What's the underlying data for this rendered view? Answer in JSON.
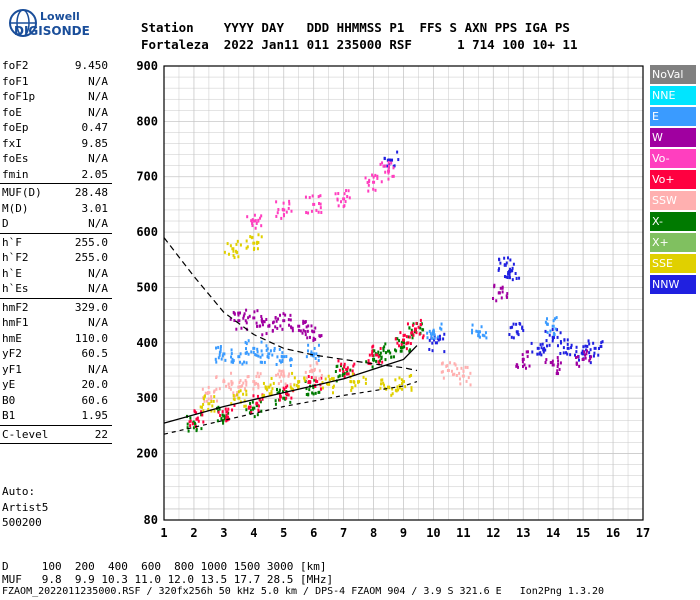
{
  "logo": {
    "line1": "Lowell",
    "line2": "DIGISONDE"
  },
  "header": {
    "row1": "Station    YYYY DAY   DDD HHMMSS P1  FFS S AXN PPS IGA PS",
    "row2": "Fortaleza  2022 Jan11 011 235000 RSF      1 714 100 10+ 11"
  },
  "params": [
    {
      "k": "foF2",
      "v": "9.450"
    },
    {
      "k": "foF1",
      "v": "N/A"
    },
    {
      "k": "foF1p",
      "v": "N/A"
    },
    {
      "k": "foE",
      "v": "N/A"
    },
    {
      "k": "foEp",
      "v": "0.47"
    },
    {
      "k": "fxI",
      "v": "9.85"
    },
    {
      "k": "foEs",
      "v": "N/A"
    },
    {
      "k": "fmin",
      "v": "2.05"
    },
    {
      "sep": true
    },
    {
      "k": "MUF(D)",
      "v": "28.48"
    },
    {
      "k": "M(D)",
      "v": "3.01"
    },
    {
      "k": "D",
      "v": "N/A"
    },
    {
      "sep": true
    },
    {
      "k": "h`F",
      "v": "255.0"
    },
    {
      "k": "h`F2",
      "v": "255.0"
    },
    {
      "k": "h`E",
      "v": "N/A"
    },
    {
      "k": "h`Es",
      "v": "N/A"
    },
    {
      "sep": true
    },
    {
      "k": "hmF2",
      "v": "329.0"
    },
    {
      "k": "hmF1",
      "v": "N/A"
    },
    {
      "k": "hmE",
      "v": "110.0"
    },
    {
      "k": "yF2",
      "v": "60.5"
    },
    {
      "k": "yF1",
      "v": "N/A"
    },
    {
      "k": "yE",
      "v": "20.0"
    },
    {
      "k": "B0",
      "v": "60.6"
    },
    {
      "k": "B1",
      "v": "1.95"
    },
    {
      "sep": true
    },
    {
      "k": "C-level",
      "v": "22"
    },
    {
      "sep": true
    }
  ],
  "auto": {
    "l1": "Auto:",
    "l2": "Artist5",
    "l3": "500200"
  },
  "legend": [
    {
      "label": "NoVal",
      "bg": "#808080",
      "fg": "#ffffff"
    },
    {
      "label": "NNE",
      "bg": "#00e5ff",
      "fg": "#ffffff"
    },
    {
      "label": "E",
      "bg": "#3a9bff",
      "fg": "#ffffff"
    },
    {
      "label": "W",
      "bg": "#a000a0",
      "fg": "#ffffff"
    },
    {
      "label": "Vo-",
      "bg": "#ff3fbf",
      "fg": "#ffffff"
    },
    {
      "label": "Vo+",
      "bg": "#ff0040",
      "fg": "#ffffff"
    },
    {
      "label": "SSW",
      "bg": "#ffb0b0",
      "fg": "#ffffff"
    },
    {
      "label": "X-",
      "bg": "#007a00",
      "fg": "#ffffff"
    },
    {
      "label": "X+",
      "bg": "#80c060",
      "fg": "#ffffff"
    },
    {
      "label": "SSE",
      "bg": "#e0d000",
      "fg": "#ffffff"
    },
    {
      "label": "NNW",
      "bg": "#2020e0",
      "fg": "#ffffff"
    }
  ],
  "footer": {
    "d_row": "D     100  200  400  600  800 1000 1500 3000 [km]",
    "muf_row": "MUF   9.8  9.9 10.3 11.0 12.0 13.5 17.7 28.5 [MHz]",
    "info_row": "FZAOM_2022011235000.RSF / 320fx256h 50 kHz 5.0 km / DPS-4 FZAOM 904 / 3.9 S 321.6 E   Ion2Png 1.3.20"
  },
  "chart_data": {
    "type": "scatter",
    "xlim": [
      1,
      17
    ],
    "ylim": [
      80,
      900
    ],
    "x_ticks": [
      1,
      2,
      3,
      4,
      5,
      6,
      7,
      8,
      9,
      10,
      11,
      12,
      13,
      14,
      15,
      16,
      17
    ],
    "y_ticks": [
      80,
      200,
      300,
      400,
      500,
      600,
      700,
      800,
      900
    ],
    "grid": true,
    "series": [
      {
        "name": "X-",
        "color": "#007a00",
        "points": [
          [
            2.0,
            255
          ],
          [
            3.0,
            268
          ],
          [
            4.0,
            282
          ],
          [
            5.0,
            300
          ],
          [
            6.0,
            322
          ],
          [
            7.0,
            345
          ],
          [
            8.0,
            370
          ],
          [
            8.5,
            385
          ],
          [
            9.0,
            400
          ],
          [
            9.4,
            420
          ]
        ]
      },
      {
        "name": "Vo+",
        "color": "#ff0040",
        "points": [
          [
            2.1,
            262
          ],
          [
            3.1,
            275
          ],
          [
            4.1,
            290
          ],
          [
            5.1,
            308
          ],
          [
            6.1,
            330
          ],
          [
            7.1,
            352
          ],
          [
            8.1,
            378
          ],
          [
            9.0,
            405
          ],
          [
            9.4,
            425
          ]
        ]
      },
      {
        "name": "NNW",
        "color": "#2020e0",
        "points": [
          [
            8.6,
            730
          ],
          [
            10.1,
            400
          ],
          [
            12.4,
            540
          ],
          [
            12.6,
            530
          ],
          [
            12.8,
            420
          ],
          [
            13.5,
            390
          ],
          [
            14.0,
            410
          ],
          [
            14.5,
            390
          ],
          [
            15.0,
            380
          ],
          [
            15.4,
            390
          ]
        ]
      },
      {
        "name": "W",
        "color": "#a000a0",
        "points": [
          [
            3.5,
            440
          ],
          [
            4.0,
            445
          ],
          [
            4.5,
            430
          ],
          [
            5.0,
            440
          ],
          [
            5.5,
            430
          ],
          [
            6.0,
            420
          ],
          [
            12.2,
            490
          ],
          [
            13.0,
            370
          ],
          [
            14.0,
            360
          ],
          [
            15.0,
            370
          ]
        ]
      },
      {
        "name": "E",
        "color": "#3a9bff",
        "points": [
          [
            3.0,
            380
          ],
          [
            3.5,
            375
          ],
          [
            4.0,
            390
          ],
          [
            4.5,
            380
          ],
          [
            5.0,
            375
          ],
          [
            6.0,
            380
          ],
          [
            10.0,
            420
          ],
          [
            11.5,
            420
          ],
          [
            14.0,
            430
          ]
        ]
      },
      {
        "name": "SSW",
        "color": "#ffb0b0",
        "points": [
          [
            2.5,
            310
          ],
          [
            3.0,
            330
          ],
          [
            3.5,
            320
          ],
          [
            4.0,
            330
          ],
          [
            5.0,
            340
          ],
          [
            6.0,
            350
          ],
          [
            10.5,
            350
          ],
          [
            11.0,
            340
          ]
        ]
      },
      {
        "name": "SSE",
        "color": "#e0d000",
        "points": [
          [
            2.5,
            290
          ],
          [
            3.5,
            300
          ],
          [
            4.5,
            320
          ],
          [
            5.5,
            330
          ],
          [
            6.5,
            325
          ],
          [
            7.5,
            330
          ],
          [
            8.5,
            320
          ],
          [
            9.0,
            330
          ],
          [
            3.3,
            570
          ],
          [
            4.0,
            580
          ]
        ]
      },
      {
        "name": "Vo-",
        "color": "#ff3fbf",
        "points": [
          [
            4.0,
            620
          ],
          [
            5.0,
            640
          ],
          [
            6.0,
            650
          ],
          [
            7.0,
            660
          ],
          [
            8.0,
            690
          ],
          [
            8.5,
            710
          ]
        ]
      }
    ],
    "virtual_height_profile": [
      [
        1.0,
        255
      ],
      [
        3.0,
        285
      ],
      [
        5.0,
        310
      ],
      [
        7.0,
        335
      ],
      [
        9.0,
        370
      ],
      [
        9.45,
        395
      ]
    ],
    "true_height_profile_dashed": [
      [
        1.0,
        590
      ],
      [
        2.0,
        520
      ],
      [
        3.0,
        455
      ],
      [
        4.0,
        415
      ],
      [
        5.0,
        390
      ],
      [
        6.0,
        378
      ],
      [
        7.0,
        370
      ],
      [
        8.0,
        362
      ],
      [
        9.0,
        355
      ],
      [
        9.45,
        350
      ]
    ],
    "lower_dashed_curve": [
      [
        1.0,
        235
      ],
      [
        3.0,
        260
      ],
      [
        5.0,
        285
      ],
      [
        7.0,
        305
      ],
      [
        9.0,
        322
      ],
      [
        9.45,
        330
      ]
    ]
  }
}
